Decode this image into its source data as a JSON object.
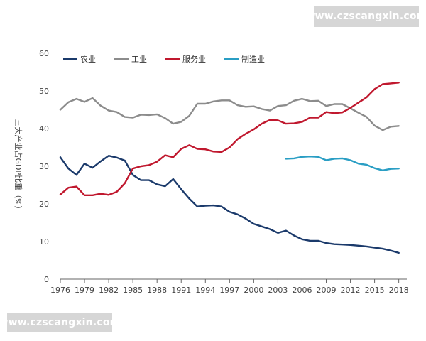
{
  "watermarks": {
    "top": "www.czscangxin.com",
    "bottom": "www.czscangxin.com"
  },
  "chart_data": {
    "type": "line",
    "title": "",
    "xlabel": "",
    "ylabel": "三大产业占GDP比重（%）",
    "xlim": [
      1976,
      2019
    ],
    "ylim": [
      0,
      60
    ],
    "x_ticks": [
      1976,
      1979,
      1982,
      1985,
      1988,
      1991,
      1994,
      1997,
      2000,
      2003,
      2006,
      2009,
      2012,
      2015,
      2018
    ],
    "y_ticks": [
      0,
      10,
      20,
      30,
      40,
      50,
      60
    ],
    "grid": false,
    "legend_position": "top-left",
    "series": [
      {
        "name": "农业",
        "color": "#1b3a6b",
        "x": [
          1976,
          1977,
          1978,
          1979,
          1980,
          1981,
          1982,
          1983,
          1984,
          1985,
          1986,
          1987,
          1988,
          1989,
          1990,
          1991,
          1992,
          1993,
          1994,
          1995,
          1996,
          1997,
          1998,
          1999,
          2000,
          2001,
          2002,
          2003,
          2004,
          2005,
          2006,
          2007,
          2008,
          2009,
          2010,
          2011,
          2012,
          2013,
          2014,
          2015,
          2016,
          2017,
          2018
        ],
        "values": [
          32.4,
          29.4,
          27.7,
          30.7,
          29.6,
          31.3,
          32.8,
          32.3,
          31.5,
          27.7,
          26.3,
          26.3,
          25.2,
          24.7,
          26.6,
          23.9,
          21.4,
          19.3,
          19.5,
          19.6,
          19.3,
          17.9,
          17.2,
          16.1,
          14.7,
          14.0,
          13.3,
          12.3,
          12.9,
          11.6,
          10.6,
          10.2,
          10.2,
          9.6,
          9.3,
          9.2,
          9.1,
          8.9,
          8.7,
          8.4,
          8.1,
          7.6,
          7.0
        ]
      },
      {
        "name": "工业",
        "color": "#8c8c8c",
        "x": [
          1976,
          1977,
          1978,
          1979,
          1980,
          1981,
          1982,
          1983,
          1984,
          1985,
          1986,
          1987,
          1988,
          1989,
          1990,
          1991,
          1992,
          1993,
          1994,
          1995,
          1996,
          1997,
          1998,
          1999,
          2000,
          2001,
          2002,
          2003,
          2004,
          2005,
          2006,
          2007,
          2008,
          2009,
          2010,
          2011,
          2012,
          2013,
          2014,
          2015,
          2016,
          2017,
          2018
        ],
        "values": [
          45.0,
          47.0,
          47.9,
          47.1,
          48.1,
          46.1,
          44.8,
          44.4,
          43.1,
          42.9,
          43.7,
          43.6,
          43.8,
          42.8,
          41.3,
          41.8,
          43.4,
          46.6,
          46.6,
          47.2,
          47.5,
          47.5,
          46.2,
          45.8,
          45.9,
          45.2,
          44.8,
          46.0,
          46.2,
          47.4,
          47.9,
          47.3,
          47.4,
          46.0,
          46.5,
          46.5,
          45.4,
          44.2,
          43.1,
          40.8,
          39.6,
          40.5,
          40.7
        ]
      },
      {
        "name": "服务业",
        "color": "#c0182e",
        "x": [
          1976,
          1977,
          1978,
          1979,
          1980,
          1981,
          1982,
          1983,
          1984,
          1985,
          1986,
          1987,
          1988,
          1989,
          1990,
          1991,
          1992,
          1993,
          1994,
          1995,
          1996,
          1997,
          1998,
          1999,
          2000,
          2001,
          2002,
          2003,
          2004,
          2005,
          2006,
          2007,
          2008,
          2009,
          2010,
          2011,
          2012,
          2013,
          2014,
          2015,
          2016,
          2017,
          2018
        ],
        "values": [
          22.5,
          24.3,
          24.6,
          22.3,
          22.3,
          22.7,
          22.4,
          23.2,
          25.5,
          29.4,
          30.0,
          30.3,
          31.2,
          32.9,
          32.4,
          34.6,
          35.6,
          34.6,
          34.5,
          33.9,
          33.8,
          35.0,
          37.2,
          38.6,
          39.8,
          41.3,
          42.3,
          42.2,
          41.3,
          41.4,
          41.8,
          42.9,
          42.9,
          44.4,
          44.1,
          44.3,
          45.5,
          46.9,
          48.3,
          50.5,
          51.8,
          52.0,
          52.2
        ]
      },
      {
        "name": "制造业",
        "color": "#2a9ec4",
        "x": [
          2004,
          2005,
          2006,
          2007,
          2008,
          2009,
          2010,
          2011,
          2012,
          2013,
          2014,
          2015,
          2016,
          2017,
          2018
        ],
        "values": [
          32.0,
          32.1,
          32.5,
          32.6,
          32.5,
          31.6,
          32.0,
          32.1,
          31.6,
          30.7,
          30.4,
          29.5,
          28.9,
          29.3,
          29.4
        ]
      }
    ]
  }
}
